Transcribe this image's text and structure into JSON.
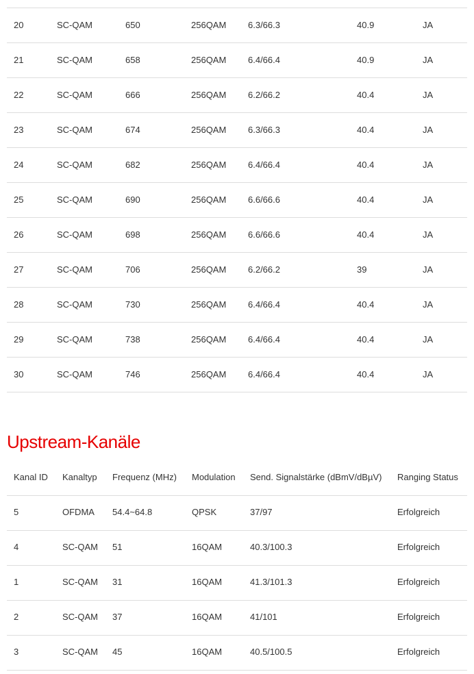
{
  "downstream": {
    "rows": [
      [
        "20",
        "SC-QAM",
        "650",
        "256QAM",
        "6.3/66.3",
        "40.9",
        "JA"
      ],
      [
        "21",
        "SC-QAM",
        "658",
        "256QAM",
        "6.4/66.4",
        "40.9",
        "JA"
      ],
      [
        "22",
        "SC-QAM",
        "666",
        "256QAM",
        "6.2/66.2",
        "40.4",
        "JA"
      ],
      [
        "23",
        "SC-QAM",
        "674",
        "256QAM",
        "6.3/66.3",
        "40.4",
        "JA"
      ],
      [
        "24",
        "SC-QAM",
        "682",
        "256QAM",
        "6.4/66.4",
        "40.4",
        "JA"
      ],
      [
        "25",
        "SC-QAM",
        "690",
        "256QAM",
        "6.6/66.6",
        "40.4",
        "JA"
      ],
      [
        "26",
        "SC-QAM",
        "698",
        "256QAM",
        "6.6/66.6",
        "40.4",
        "JA"
      ],
      [
        "27",
        "SC-QAM",
        "706",
        "256QAM",
        "6.2/66.2",
        "39",
        "JA"
      ],
      [
        "28",
        "SC-QAM",
        "730",
        "256QAM",
        "6.4/66.4",
        "40.4",
        "JA"
      ],
      [
        "29",
        "SC-QAM",
        "738",
        "256QAM",
        "6.4/66.4",
        "40.4",
        "JA"
      ],
      [
        "30",
        "SC-QAM",
        "746",
        "256QAM",
        "6.4/66.4",
        "40.4",
        "JA"
      ]
    ]
  },
  "upstream": {
    "title": "Upstream-Kanäle",
    "headers": [
      "Kanal ID",
      "Kanaltyp",
      "Frequenz (MHz)",
      "Modulation",
      "Send. Signalstärke (dBmV/dBµV)",
      "Ranging Status"
    ],
    "rows": [
      [
        "5",
        "OFDMA",
        "54.4~64.8",
        "QPSK",
        "37/97",
        "Erfolgreich"
      ],
      [
        "4",
        "SC-QAM",
        "51",
        "16QAM",
        "40.3/100.3",
        "Erfolgreich"
      ],
      [
        "1",
        "SC-QAM",
        "31",
        "16QAM",
        "41.3/101.3",
        "Erfolgreich"
      ],
      [
        "2",
        "SC-QAM",
        "37",
        "16QAM",
        "41/101",
        "Erfolgreich"
      ],
      [
        "3",
        "SC-QAM",
        "45",
        "16QAM",
        "40.5/100.5",
        "Erfolgreich"
      ]
    ]
  }
}
